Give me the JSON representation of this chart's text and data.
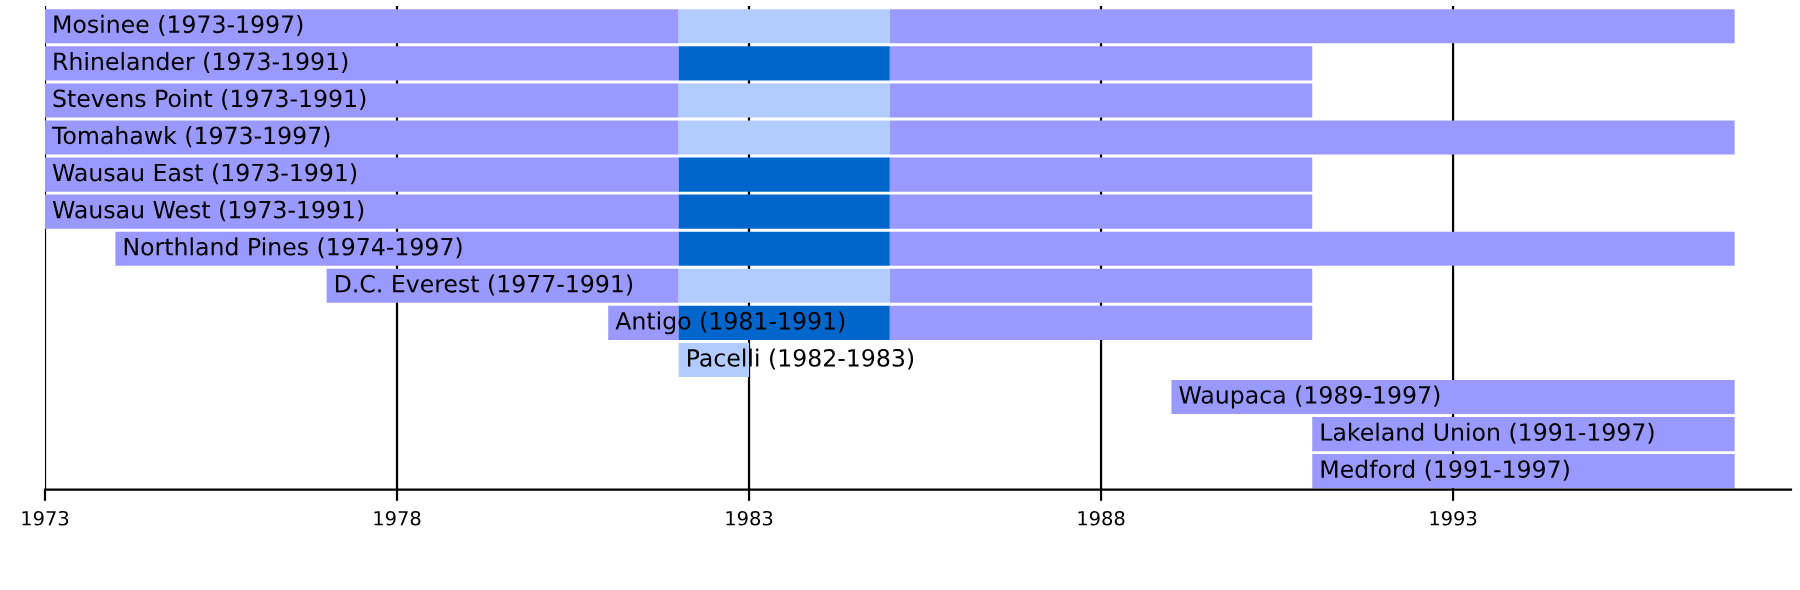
{
  "chart_data": {
    "type": "bar",
    "orientation": "horizontal",
    "categories": [
      "Mosinee (1973-1997)",
      "Rhinelander (1973-1991)",
      "Stevens Point (1973-1991)",
      "Tomahawk (1973-1997)",
      "Wausau East (1973-1991)",
      "Wausau West (1973-1991)",
      "Northland Pines (1974-1997)",
      "D.C. Everest (1977-1991)",
      "Antigo (1981-1991)",
      "Pacelli (1982-1983)",
      "Waupaca (1989-1997)",
      "Lakeland Union (1991-1997)",
      "Medford (1991-1997)"
    ],
    "series": [
      {
        "color": "#9999ff",
        "base": [
          1973,
          1973,
          1973,
          1973,
          1973,
          1973,
          1974,
          1977,
          1981,
          null,
          null,
          null,
          null
        ],
        "values": [
          9,
          9,
          9,
          9,
          9,
          9,
          8,
          5,
          1,
          null,
          null,
          null,
          null
        ]
      },
      {
        "colors": [
          "#b3ccff",
          "#0066cc",
          "#b3ccff",
          "#b3ccff",
          "#0066cc",
          "#0066cc",
          "#0066cc",
          "#b3ccff",
          "#0066cc",
          "#b3ccff",
          null,
          null,
          null
        ],
        "base": [
          1982,
          1982,
          1982,
          1982,
          1982,
          1982,
          1982,
          1982,
          1982,
          1982,
          null,
          null,
          null
        ],
        "values": [
          3,
          3,
          3,
          3,
          3,
          3,
          3,
          3,
          3,
          1,
          null,
          null,
          null
        ]
      },
      {
        "color": "#9999ff",
        "base": [
          1985,
          1985,
          1985,
          1985,
          1985,
          1985,
          1985,
          1985,
          1985,
          null,
          1989,
          1991,
          1991
        ],
        "values": [
          12,
          6,
          6,
          12,
          6,
          6,
          12,
          6,
          6,
          null,
          8,
          6,
          6
        ]
      }
    ],
    "xlim": [
      1973,
      1997.8
    ],
    "xticks": [
      1973,
      1978,
      1983,
      1988,
      1993
    ],
    "grid": "x"
  }
}
